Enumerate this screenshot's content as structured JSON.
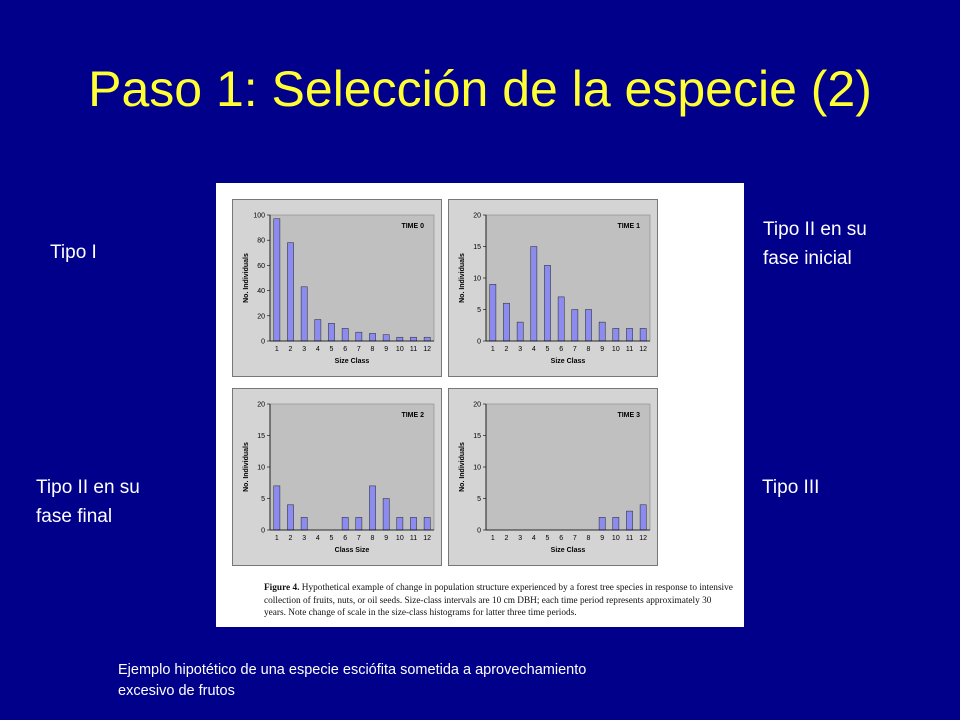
{
  "slide": {
    "title": "Paso 1: Selección de la especie (2)",
    "label_tl": "Tipo I",
    "label_tr_1": "Tipo II en su",
    "label_tr_2": "fase inicial",
    "label_bl_1": "Tipo II en su",
    "label_bl_2": "fase final",
    "label_br": "Tipo III",
    "caption_1": "Ejemplo hipotético de una especie esciófita sometida a aprovechamiento",
    "caption_2": "excesivo de frutos"
  },
  "figure": {
    "caption_label": "Figure 4.",
    "caption_text": "Hypothetical example of change in population structure experienced by a forest tree species in response to intensive collection of fruits, nuts, or oil seeds. Size-class intervals are 10 cm DBH; each time period represents approximately 30 years. Note change of scale in the size-class histograms for latter three time periods."
  },
  "colors": {
    "background": "#00008b",
    "title": "#ffff33",
    "bar": "#8c8cf0",
    "plot_bg": "#c0c0c0"
  },
  "chart_data": [
    {
      "type": "bar",
      "title": "TIME 0",
      "xlabel": "Size Class",
      "ylabel": "No. Individuals",
      "categories": [
        "1",
        "2",
        "3",
        "4",
        "5",
        "6",
        "7",
        "8",
        "9",
        "10",
        "11",
        "12"
      ],
      "values": [
        97,
        78,
        43,
        17,
        14,
        10,
        7,
        6,
        5,
        3,
        3,
        3
      ],
      "ylim": [
        0,
        100
      ],
      "yticks": [
        0,
        20,
        40,
        60,
        80,
        100
      ]
    },
    {
      "type": "bar",
      "title": "TIME 1",
      "xlabel": "Size Class",
      "ylabel": "No. Individuals",
      "categories": [
        "1",
        "2",
        "3",
        "4",
        "5",
        "6",
        "7",
        "8",
        "9",
        "10",
        "11",
        "12"
      ],
      "values": [
        9,
        6,
        3,
        15,
        12,
        7,
        5,
        5,
        3,
        2,
        2,
        2
      ],
      "ylim": [
        0,
        20
      ],
      "yticks": [
        0,
        5,
        10,
        15,
        20
      ]
    },
    {
      "type": "bar",
      "title": "TIME 2",
      "xlabel": "Class Size",
      "ylabel": "No. Individuals",
      "categories": [
        "1",
        "2",
        "3",
        "4",
        "5",
        "6",
        "7",
        "8",
        "9",
        "10",
        "11",
        "12"
      ],
      "values": [
        7,
        4,
        2,
        0,
        0,
        2,
        2,
        7,
        5,
        2,
        2,
        2
      ],
      "ylim": [
        0,
        20
      ],
      "yticks": [
        0,
        5,
        10,
        15,
        20
      ]
    },
    {
      "type": "bar",
      "title": "TIME 3",
      "xlabel": "Size Class",
      "ylabel": "No. Individuals",
      "categories": [
        "1",
        "2",
        "3",
        "4",
        "5",
        "6",
        "7",
        "8",
        "9",
        "10",
        "11",
        "12"
      ],
      "values": [
        0,
        0,
        0,
        0,
        0,
        0,
        0,
        0,
        2,
        2,
        3,
        4
      ],
      "ylim": [
        0,
        20
      ],
      "yticks": [
        0,
        5,
        10,
        15,
        20
      ]
    }
  ]
}
